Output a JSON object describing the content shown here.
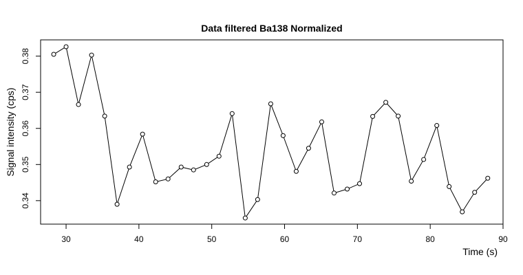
{
  "chart_data": {
    "type": "line",
    "title": "Data filtered Ba138 Normalized",
    "xlabel": "Time (s)",
    "ylabel": "Signal intensity (cps)",
    "xlim": [
      26.5,
      90
    ],
    "ylim": [
      0.3335,
      0.3845
    ],
    "xticks": [
      30,
      40,
      50,
      60,
      70,
      80,
      90
    ],
    "yticks": [
      0.34,
      0.35,
      0.36,
      0.37,
      0.38
    ],
    "grid": false,
    "markers": "open-circle",
    "series": [
      {
        "x": [
          28.3,
          30.0,
          31.7,
          33.5,
          35.3,
          37.0,
          38.7,
          40.5,
          42.3,
          44.0,
          45.8,
          47.5,
          49.3,
          51.0,
          52.8,
          54.6,
          56.3,
          58.1,
          59.8,
          61.6,
          63.3,
          65.1,
          66.8,
          68.6,
          70.3,
          72.1,
          73.9,
          75.6,
          77.4,
          79.1,
          80.9,
          82.6,
          84.4,
          86.1,
          87.9
        ],
        "y": [
          0.3805,
          0.3826,
          0.3666,
          0.3803,
          0.3634,
          0.339,
          0.3493,
          0.3584,
          0.3452,
          0.346,
          0.3493,
          0.3485,
          0.35,
          0.3523,
          0.3641,
          0.3352,
          0.3403,
          0.3668,
          0.358,
          0.3481,
          0.3545,
          0.3618,
          0.3421,
          0.3432,
          0.3447,
          0.3633,
          0.3672,
          0.3634,
          0.3454,
          0.3514,
          0.3608,
          0.3439,
          0.3369,
          0.3423,
          0.3462
        ]
      }
    ]
  }
}
